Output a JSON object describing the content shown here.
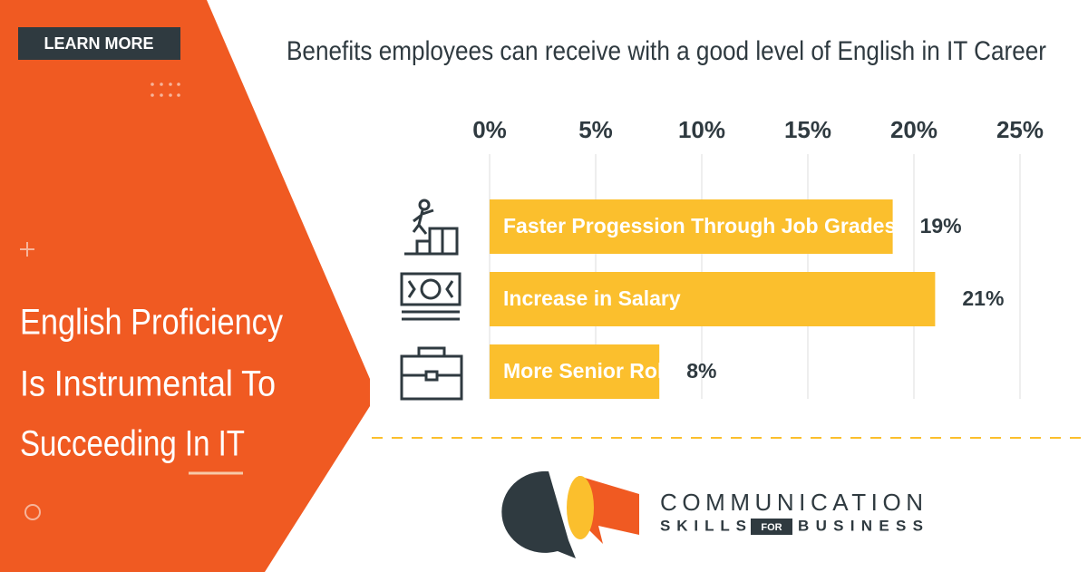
{
  "header": {
    "button": "LEARN MORE",
    "headline": [
      "English Proficiency",
      "Is Instrumental To",
      "Succeeding In IT"
    ]
  },
  "chart_data": {
    "type": "bar",
    "orientation": "horizontal",
    "title": "Benefits employees can receive with a good level of English in IT Career",
    "categories": [
      "Faster Progession Through Job Grades",
      "Increase in Salary",
      "More Senior Roles"
    ],
    "values": [
      19,
      21,
      8
    ],
    "value_labels": [
      "19%",
      "21%",
      "8%"
    ],
    "color": "#fbbf2d",
    "xlim": [
      0,
      25
    ],
    "xticks": [
      {
        "value": 0,
        "label": "0%"
      },
      {
        "value": 5,
        "label": "5%"
      },
      {
        "value": 10,
        "label": "10%"
      },
      {
        "value": 15,
        "label": "15%"
      },
      {
        "value": 20,
        "label": "20%"
      },
      {
        "value": 25,
        "label": "25%"
      }
    ],
    "grid": true
  },
  "logo": {
    "line1": "COMMUNICATION",
    "skills": "SKILLS",
    "for": "FOR",
    "business": "BUSINESS"
  }
}
